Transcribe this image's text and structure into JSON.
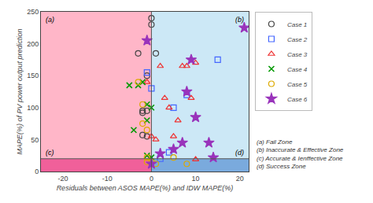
{
  "chart_data": {
    "type": "scatter",
    "xlabel": "Residuals between ASOS MAPE(%) and IDW MAPE(%)",
    "ylabel": "MAPE(%) of PV power output prediction",
    "xlim": [
      -25,
      22
    ],
    "ylim": [
      0,
      250
    ],
    "xticks": [
      -20,
      -10,
      0,
      10,
      20
    ],
    "yticks": [
      0,
      50,
      100,
      150,
      200,
      250
    ],
    "grid": false,
    "legend": "outside right",
    "thresholds": {
      "x": 0,
      "y": 20,
      "color": "#555555"
    },
    "zones": [
      {
        "label": "(a)",
        "color": "#ffb6c8"
      },
      {
        "label": "(b)",
        "color": "#cce8f6"
      },
      {
        "label": "(c)",
        "color": "#f0609a"
      },
      {
        "label": "(d)",
        "color": "#7aaadd"
      }
    ],
    "annotations": [
      "(a) Fail Zone",
      "(b) Inaccurate & Effective Zone",
      "(c) Accurate & Ienffective Zone",
      "(d) Success Zone"
    ],
    "series": [
      {
        "name": "Case 1",
        "marker": "circle-open",
        "color": "#444444",
        "x": [
          -3,
          -2,
          -2,
          -2,
          -1,
          -1,
          -1,
          0,
          0,
          1
        ],
        "values": [
          185,
          95,
          57,
          92,
          55,
          95,
          150,
          240,
          230,
          185
        ]
      },
      {
        "name": "Case 2",
        "marker": "square-open",
        "color": "#4466ff",
        "x": [
          -1,
          0,
          2,
          4,
          5,
          8,
          15
        ],
        "values": [
          155,
          130,
          20,
          30,
          100,
          120,
          175
        ]
      },
      {
        "name": "Case 3",
        "marker": "triangle-up-open",
        "color": "#ee3333",
        "x": [
          -1,
          0,
          1,
          2,
          3,
          4,
          5,
          6,
          7,
          8,
          9,
          10,
          10
        ],
        "values": [
          140,
          55,
          50,
          165,
          115,
          100,
          55,
          80,
          165,
          165,
          115,
          170,
          19
        ]
      },
      {
        "name": "Case 4",
        "marker": "x-thin",
        "color": "#009900",
        "x": [
          -5,
          -4,
          -3,
          -2,
          -1,
          -1,
          -1,
          0,
          0
        ],
        "values": [
          135,
          65,
          135,
          140,
          105,
          80,
          25,
          100,
          22
        ]
      },
      {
        "name": "Case 5",
        "marker": "circle-open",
        "color": "#ddaa00",
        "x": [
          -3,
          -2,
          -2,
          -1,
          -1,
          -1,
          0,
          1,
          5,
          8
        ],
        "values": [
          140,
          75,
          105,
          65,
          22,
          15,
          15,
          12,
          22,
          12
        ]
      },
      {
        "name": "Case 6",
        "marker": "star",
        "color": "#9933bb",
        "x": [
          -1,
          0,
          2,
          5,
          7,
          8,
          9,
          10,
          13,
          14,
          21
        ],
        "values": [
          205,
          12,
          28,
          35,
          45,
          125,
          175,
          85,
          45,
          22,
          225
        ]
      }
    ]
  }
}
